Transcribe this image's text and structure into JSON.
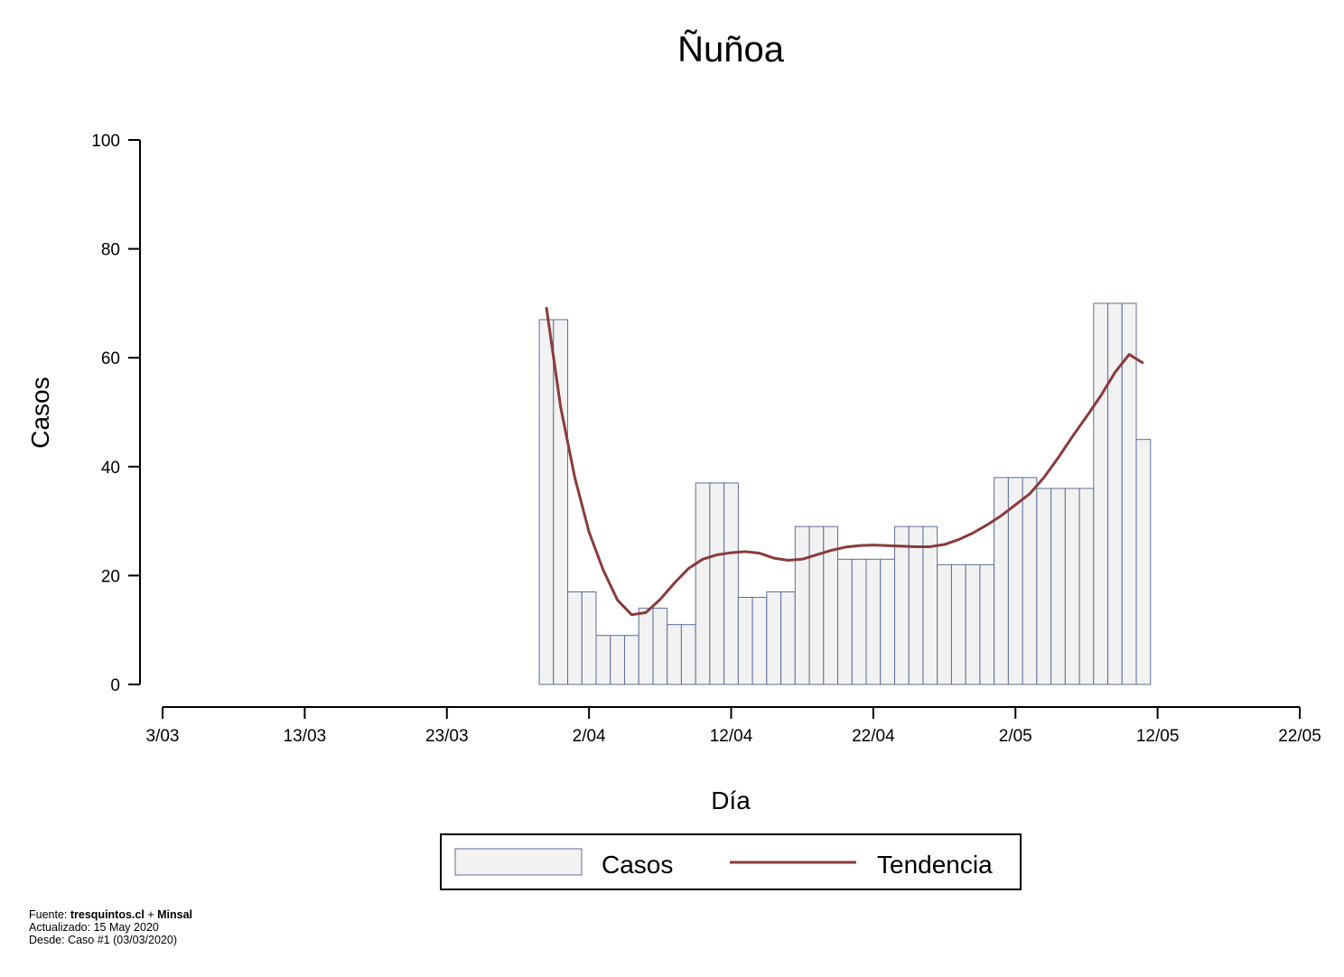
{
  "chart_data": {
    "type": "bar",
    "title": "Ñuñoa",
    "xlabel": "Día",
    "ylabel": "Casos",
    "ylim": [
      0,
      100
    ],
    "yticks": [
      0,
      20,
      40,
      60,
      80,
      100
    ],
    "xlim": [
      "2020-03-03",
      "2020-05-22"
    ],
    "xticks": [
      "2020-03-03",
      "2020-03-13",
      "2020-03-23",
      "2020-04-02",
      "2020-04-12",
      "2020-04-22",
      "2020-05-02",
      "2020-05-12",
      "2020-05-22"
    ],
    "xtick_labels": [
      "3/03",
      "13/03",
      "23/03",
      "2/04",
      "12/04",
      "22/04",
      "2/05",
      "12/05",
      "22/05"
    ],
    "grid": false,
    "legend_position": "bottom",
    "series": [
      {
        "name": "Casos",
        "kind": "bar",
        "fill": "#f2f2f2",
        "stroke": "#5a6e9a",
        "x": [
          "2020-03-30",
          "2020-03-31",
          "2020-04-01",
          "2020-04-02",
          "2020-04-03",
          "2020-04-04",
          "2020-04-05",
          "2020-04-06",
          "2020-04-07",
          "2020-04-08",
          "2020-04-09",
          "2020-04-10",
          "2020-04-11",
          "2020-04-12",
          "2020-04-13",
          "2020-04-14",
          "2020-04-15",
          "2020-04-16",
          "2020-04-17",
          "2020-04-18",
          "2020-04-19",
          "2020-04-20",
          "2020-04-21",
          "2020-04-22",
          "2020-04-23",
          "2020-04-24",
          "2020-04-25",
          "2020-04-26",
          "2020-04-27",
          "2020-04-28",
          "2020-04-29",
          "2020-04-30",
          "2020-05-01",
          "2020-05-02",
          "2020-05-03",
          "2020-05-04",
          "2020-05-05",
          "2020-05-06",
          "2020-05-07",
          "2020-05-08",
          "2020-05-09",
          "2020-05-10",
          "2020-05-11"
        ],
        "values": [
          67,
          67,
          17,
          17,
          9,
          9,
          9,
          14,
          14,
          11,
          11,
          37,
          37,
          37,
          16,
          16,
          17,
          17,
          29,
          29,
          29,
          23,
          23,
          23,
          23,
          29,
          29,
          29,
          22,
          22,
          22,
          22,
          38,
          38,
          38,
          36,
          36,
          36,
          36,
          70,
          70,
          70,
          45
        ]
      },
      {
        "name": "Tendencia",
        "kind": "line",
        "color": "#8b3a3a",
        "x": [
          "2020-03-30",
          "2020-03-31",
          "2020-04-01",
          "2020-04-02",
          "2020-04-03",
          "2020-04-04",
          "2020-04-05",
          "2020-04-06",
          "2020-04-07",
          "2020-04-08",
          "2020-04-09",
          "2020-04-10",
          "2020-04-11",
          "2020-04-12",
          "2020-04-13",
          "2020-04-14",
          "2020-04-15",
          "2020-04-16",
          "2020-04-17",
          "2020-04-18",
          "2020-04-19",
          "2020-04-20",
          "2020-04-21",
          "2020-04-22",
          "2020-04-23",
          "2020-04-24",
          "2020-04-25",
          "2020-04-26",
          "2020-04-27",
          "2020-04-28",
          "2020-04-29",
          "2020-04-30",
          "2020-05-01",
          "2020-05-02",
          "2020-05-03",
          "2020-05-04",
          "2020-05-05",
          "2020-05-06",
          "2020-05-07",
          "2020-05-08",
          "2020-05-09",
          "2020-05-10",
          "2020-05-11"
        ],
        "values": [
          69.3,
          51,
          38,
          28,
          21,
          15.5,
          12.8,
          13.2,
          15.6,
          18.6,
          21.3,
          23,
          23.8,
          24.2,
          24.4,
          24.1,
          23.2,
          22.8,
          23,
          23.8,
          24.6,
          25.2,
          25.5,
          25.6,
          25.5,
          25.4,
          25.3,
          25.3,
          25.7,
          26.6,
          27.8,
          29.3,
          31,
          33,
          35,
          38,
          41.6,
          45.5,
          49.2,
          53,
          57.3,
          60.6,
          59
        ]
      }
    ]
  },
  "legend": {
    "items": [
      {
        "label": "Casos",
        "kind": "bar"
      },
      {
        "label": "Tendencia",
        "kind": "line"
      }
    ]
  },
  "footer": {
    "line1_prefix": "Fuente: ",
    "line1_src1": "tresquintos.cl",
    "line1_sep": " + ",
    "line1_src2": "Minsal",
    "line2": "Actualizado: 15 May 2020",
    "line3": "Desde: Caso #1  (03/03/2020)"
  }
}
